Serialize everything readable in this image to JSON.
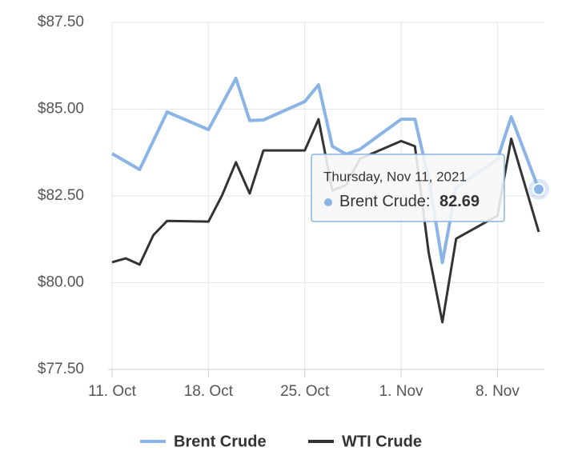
{
  "chart_data": {
    "type": "line",
    "series": [
      {
        "name": "Brent Crude",
        "color": "#8ab4e6",
        "x": [
          "2021-10-11",
          "2021-10-13",
          "2021-10-15",
          "2021-10-18",
          "2021-10-20",
          "2021-10-21",
          "2021-10-22",
          "2021-10-25",
          "2021-10-26",
          "2021-10-27",
          "2021-10-28",
          "2021-10-29",
          "2021-11-01",
          "2021-11-02",
          "2021-11-03",
          "2021-11-04",
          "2021-11-05",
          "2021-11-08",
          "2021-11-09",
          "2021-11-11"
        ],
        "values": [
          83.72,
          83.26,
          84.92,
          84.41,
          85.89,
          84.67,
          84.69,
          85.22,
          85.7,
          83.93,
          83.7,
          83.84,
          84.71,
          84.71,
          83.0,
          80.58,
          82.74,
          83.56,
          84.78,
          82.69
        ]
      },
      {
        "name": "WTI Crude",
        "color": "#333333",
        "x": [
          "2021-10-11",
          "2021-10-12",
          "2021-10-13",
          "2021-10-14",
          "2021-10-15",
          "2021-10-18",
          "2021-10-19",
          "2021-10-20",
          "2021-10-21",
          "2021-10-22",
          "2021-10-25",
          "2021-10-26",
          "2021-10-27",
          "2021-10-28",
          "2021-10-29",
          "2021-11-01",
          "2021-11-02",
          "2021-11-03",
          "2021-11-04",
          "2021-11-05",
          "2021-11-08",
          "2021-11-09",
          "2021-11-11"
        ],
        "values": [
          80.59,
          80.7,
          80.52,
          81.37,
          81.78,
          81.76,
          82.52,
          83.47,
          82.57,
          83.81,
          83.81,
          84.71,
          82.66,
          82.81,
          83.57,
          84.08,
          83.93,
          80.86,
          78.86,
          81.27,
          81.93,
          84.15,
          81.46
        ]
      }
    ],
    "xlim": [
      "2021-10-11",
      "2021-11-11"
    ],
    "xticks": [
      {
        "value": "2021-10-11",
        "label": "11. Oct"
      },
      {
        "value": "2021-10-18",
        "label": "18. Oct"
      },
      {
        "value": "2021-10-25",
        "label": "25. Oct"
      },
      {
        "value": "2021-11-01",
        "label": "1. Nov"
      },
      {
        "value": "2021-11-08",
        "label": "8. Nov"
      }
    ],
    "ylim": [
      77.5,
      87.5
    ],
    "yticks": [
      {
        "value": 77.5,
        "label": "$77.50"
      },
      {
        "value": 80,
        "label": "$80.00"
      },
      {
        "value": 82.5,
        "label": "$82.50"
      },
      {
        "value": 85,
        "label": "$85.00"
      },
      {
        "value": 87.5,
        "label": "$87.50"
      }
    ],
    "grid": true,
    "tooltip": {
      "date": "Thursday, Nov 11, 2021",
      "series": "Brent Crude: ",
      "value": "82.69"
    }
  }
}
